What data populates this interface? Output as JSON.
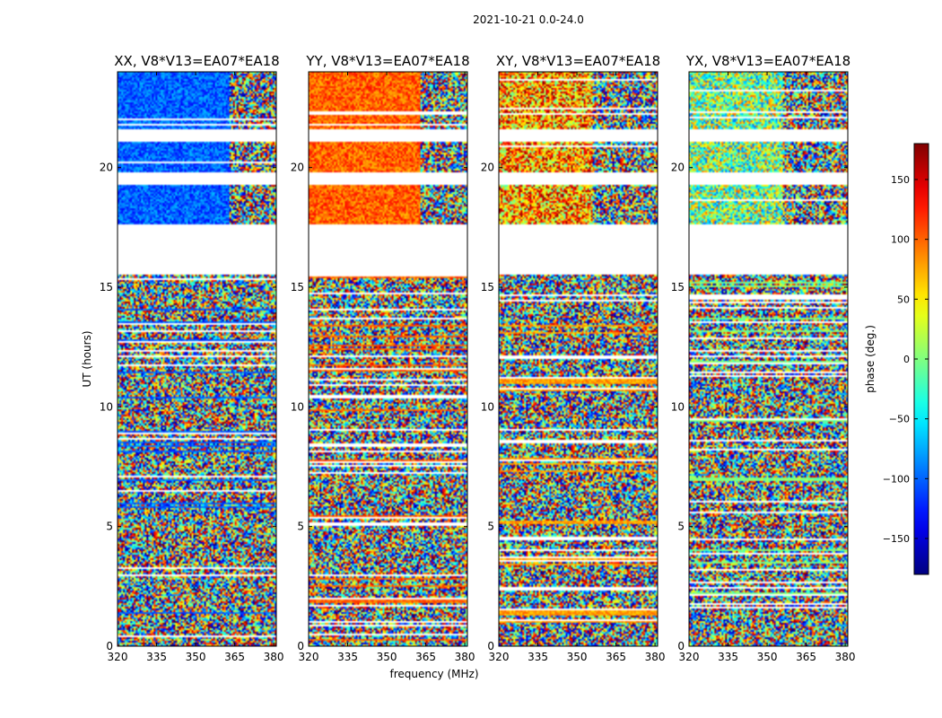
{
  "figure": {
    "suptitle": "2021-10-21 0.0-24.0",
    "xlabel": "frequency (MHz)",
    "ylabel": "UT (hours)",
    "colorbar_label": "phase (deg.)"
  },
  "chart_data": {
    "type": "heatmap",
    "description_free": true,
    "panels": [
      {
        "title": "XX, V8*V13=EA07*EA18",
        "product": "XX"
      },
      {
        "title": "YY, V8*V13=EA07*EA18",
        "product": "YY"
      },
      {
        "title": "XY, V8*V13=EA07*EA18",
        "product": "XY"
      },
      {
        "title": "YX, V8*V13=EA07*EA18",
        "product": "YX"
      }
    ],
    "xlim": [
      320,
      381
    ],
    "ylim": [
      0,
      24
    ],
    "xticks": [
      320,
      335,
      350,
      365,
      380
    ],
    "xtick_labels": [
      "320",
      "335",
      "350",
      "365",
      "380"
    ],
    "yticks": [
      0,
      5,
      10,
      15,
      20
    ],
    "ytick_labels": [
      "0",
      "5",
      "10",
      "15",
      "20"
    ],
    "colorbar": {
      "range": [
        -180,
        180
      ],
      "ticks": [
        -150,
        -100,
        -50,
        0,
        50,
        100,
        150
      ],
      "tick_labels": [
        "−150",
        "−100",
        "−50",
        "0",
        "50",
        "100",
        "150"
      ],
      "colormap": "jet"
    },
    "data_gaps_ut": [
      [
        15.5,
        17.6
      ],
      [
        19.3,
        19.8
      ],
      [
        21.1,
        21.6
      ]
    ],
    "grid": false
  }
}
